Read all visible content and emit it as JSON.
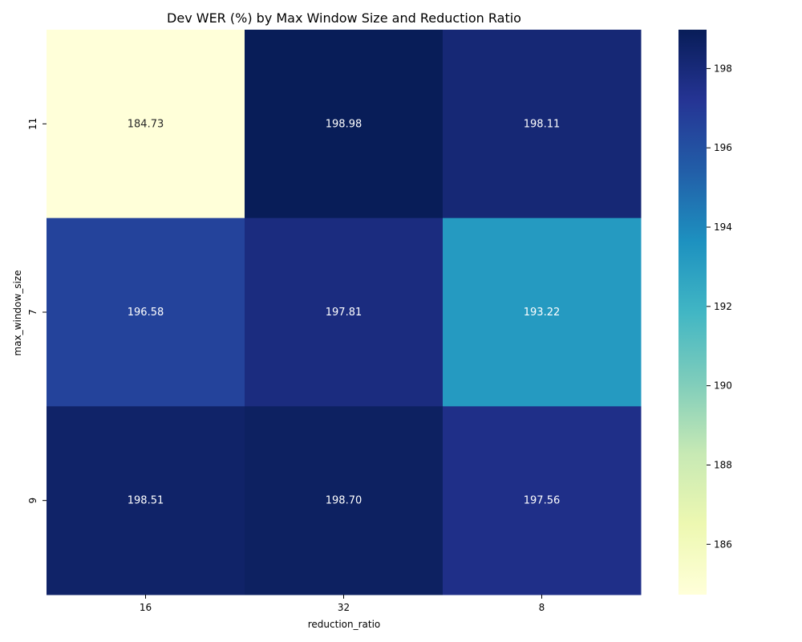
{
  "chart_data": {
    "type": "heatmap",
    "title": "Dev WER (%) by Max Window Size and Reduction Ratio",
    "xlabel": "reduction_ratio",
    "ylabel": "max_window_size",
    "x_categories": [
      "16",
      "32",
      "8"
    ],
    "y_categories": [
      "11",
      "7",
      "9"
    ],
    "values": [
      [
        184.73,
        198.98,
        198.11
      ],
      [
        196.58,
        197.81,
        193.22
      ],
      [
        198.51,
        198.7,
        197.56
      ]
    ],
    "value_labels": [
      [
        "184.73",
        "198.98",
        "198.11"
      ],
      [
        "196.58",
        "197.81",
        "193.22"
      ],
      [
        "198.51",
        "198.70",
        "197.56"
      ]
    ],
    "colormap": "YlGnBu",
    "colorbar": {
      "range": [
        184.73,
        198.98
      ],
      "ticks": [
        186,
        188,
        190,
        192,
        194,
        196,
        198
      ]
    },
    "grid": false
  }
}
